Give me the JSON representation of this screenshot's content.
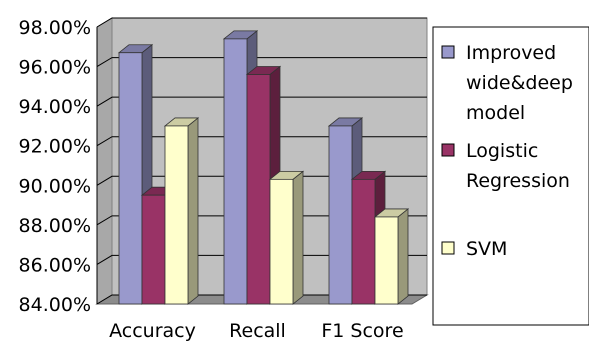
{
  "chart_data": {
    "type": "bar",
    "title": "",
    "xlabel": "",
    "ylabel": "",
    "categories": [
      "Accuracy",
      "Recall",
      "F1 Score"
    ],
    "series": [
      {
        "name": "Improved wide&deep model",
        "values": [
          96.7,
          97.4,
          93.0
        ],
        "color": "#9999cc"
      },
      {
        "name": "Logistic Regression",
        "values": [
          89.5,
          95.6,
          90.3
        ],
        "color": "#993366"
      },
      {
        "name": "SVM",
        "values": [
          93.0,
          90.3,
          88.4
        ],
        "color": "#ffffcc"
      }
    ],
    "ylim": [
      84,
      98
    ],
    "yticks": [
      84,
      86,
      88,
      90,
      92,
      94,
      96,
      98
    ],
    "ytick_labels": [
      "84.00%",
      "86.00%",
      "88.00%",
      "90.00%",
      "92.00%",
      "94.00%",
      "96.00%",
      "98.00%"
    ],
    "grid": true,
    "style": "3d",
    "plot_background": "#c0c0c0",
    "legend_position": "right",
    "legend_lines": [
      [
        "Improved",
        "wide&deep",
        "model"
      ],
      [
        "Logistic",
        "Regression"
      ],
      [
        "SVM"
      ]
    ]
  }
}
